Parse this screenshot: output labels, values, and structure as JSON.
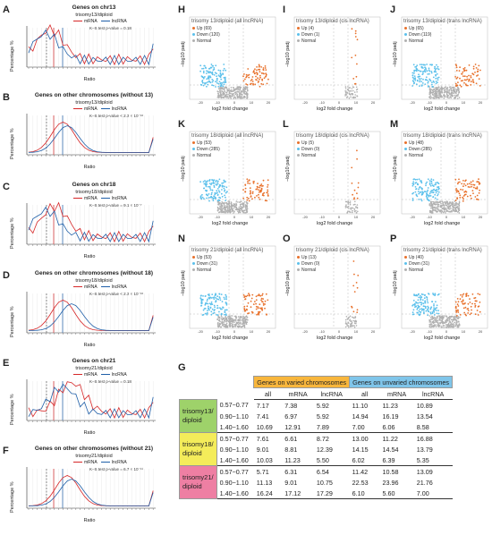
{
  "letters": {
    "A": "A",
    "B": "B",
    "C": "C",
    "D": "D",
    "E": "E",
    "F": "F",
    "G": "G",
    "H": "H",
    "I": "I",
    "J": "J",
    "K": "K",
    "L": "L",
    "M": "M",
    "N": "N",
    "O": "O",
    "P": "P"
  },
  "left_panels": [
    {
      "title": "Genes on chr13",
      "subtitle": "trisomy13/diploid",
      "ks": "K–S test p-value = 0.18"
    },
    {
      "title": "Genes on other chromosomes (without 13)",
      "subtitle": "trisomy13/diploid",
      "ks": "K–S test p-value < 2.2 × 10⁻¹⁶"
    },
    {
      "title": "Genes on chr18",
      "subtitle": "trisomy18/diploid",
      "ks": "K–S test p-value = 9.1 × 10⁻⁷"
    },
    {
      "title": "Genes on other chromosomes (without 18)",
      "subtitle": "trisomy18/diploid",
      "ks": "K–S test p-value < 2.2 × 10⁻¹⁶"
    },
    {
      "title": "Genes on chr21",
      "subtitle": "trisomy21/diploid",
      "ks": "K–S test p-value = 0.18"
    },
    {
      "title": "Genes on other chromosomes (without 21)",
      "subtitle": "trisomy21/diploid",
      "ks": "K–S test p-value = 6.7 × 10⁻¹¹"
    }
  ],
  "left_common": {
    "xlabel": "Ratio",
    "ylabel": "Percentage %",
    "legend_mrna": "mRNA",
    "legend_lnc": "lncRNA",
    "colors": {
      "mrna": "#d62728",
      "lnc": "#1f5fa8"
    }
  },
  "volcano_common": {
    "xlabel": "log2 fold change",
    "ylabel": "−log10 padj",
    "up": "Up",
    "down": "Down",
    "normal": "Normal",
    "colors": {
      "up": "#e8702a",
      "down": "#5bc0eb",
      "normal": "#b0b0b0"
    }
  },
  "volcanos": [
    {
      "letter": "H",
      "title": "trisomy 13/diploid (all lncRNA)",
      "up": "Up (69)",
      "down": "Down (120)"
    },
    {
      "letter": "I",
      "title": "trisomy 13/diploid (cis lncRNA)",
      "up": "Up (4)",
      "down": "Down (1)"
    },
    {
      "letter": "J",
      "title": "trisomy 13/diploid (trans lncRNA)",
      "up": "Up (65)",
      "down": "Down (119)"
    },
    {
      "letter": "K",
      "title": "trisomy 18/diploid (all lncRNA)",
      "up": "Up (53)",
      "down": "Down (285)"
    },
    {
      "letter": "L",
      "title": "trisomy 18/diploid (cis lncRNA)",
      "up": "Up (5)",
      "down": "Down (0)"
    },
    {
      "letter": "M",
      "title": "trisomy 18/diploid (trans lncRNA)",
      "up": "Up (48)",
      "down": "Down (285)"
    },
    {
      "letter": "N",
      "title": "trisomy 21/diploid (all lncRNA)",
      "up": "Up (53)",
      "down": "Down (31)"
    },
    {
      "letter": "O",
      "title": "trisomy 21/diploid (cis lncRNA)",
      "up": "Up (13)",
      "down": "Down (0)"
    },
    {
      "letter": "P",
      "title": "trisomy 21/diploid (trans lncRNA)",
      "up": "Up (40)",
      "down": "Down (31)"
    }
  ],
  "table": {
    "varied_header": "Genes on varied chromosomes",
    "unvaried_header": "Genes on unvaried chromosomes",
    "cols": [
      "all",
      "mRNA",
      "lncRNA",
      "all",
      "mRNA",
      "lncRNA"
    ],
    "groups": [
      {
        "label": "trisomy13/\ndiploid",
        "color": "#9ed26a",
        "rows": [
          [
            "0.57~0.77",
            "7.17",
            "7.38",
            "5.92",
            "11.10",
            "11.23",
            "10.89"
          ],
          [
            "0.90~1.10",
            "7.41",
            "6.97",
            "5.92",
            "14.94",
            "16.19",
            "13.54"
          ],
          [
            "1.40~1.60",
            "10.69",
            "12.91",
            "7.89",
            "7.00",
            "6.06",
            "8.58"
          ]
        ]
      },
      {
        "label": "trisomy18/\ndiploid",
        "color": "#f4ec5a",
        "rows": [
          [
            "0.57~0.77",
            "7.61",
            "6.61",
            "8.72",
            "13.00",
            "11.22",
            "16.88"
          ],
          [
            "0.90~1.10",
            "9.01",
            "8.81",
            "12.39",
            "14.15",
            "14.54",
            "13.79"
          ],
          [
            "1.40~1.60",
            "10.03",
            "11.23",
            "5.50",
            "6.02",
            "6.39",
            "5.35"
          ]
        ]
      },
      {
        "label": "trisomy21/\ndiploid",
        "color": "#ee7fa3",
        "rows": [
          [
            "0.57~0.77",
            "5.71",
            "6.31",
            "6.54",
            "11.42",
            "10.58",
            "13.09"
          ],
          [
            "0.90~1.10",
            "11.13",
            "9.01",
            "10.75",
            "22.53",
            "23.96",
            "21.76"
          ],
          [
            "1.40~1.60",
            "16.24",
            "17.12",
            "17.29",
            "6.10",
            "5.60",
            "7.00"
          ]
        ]
      }
    ]
  }
}
